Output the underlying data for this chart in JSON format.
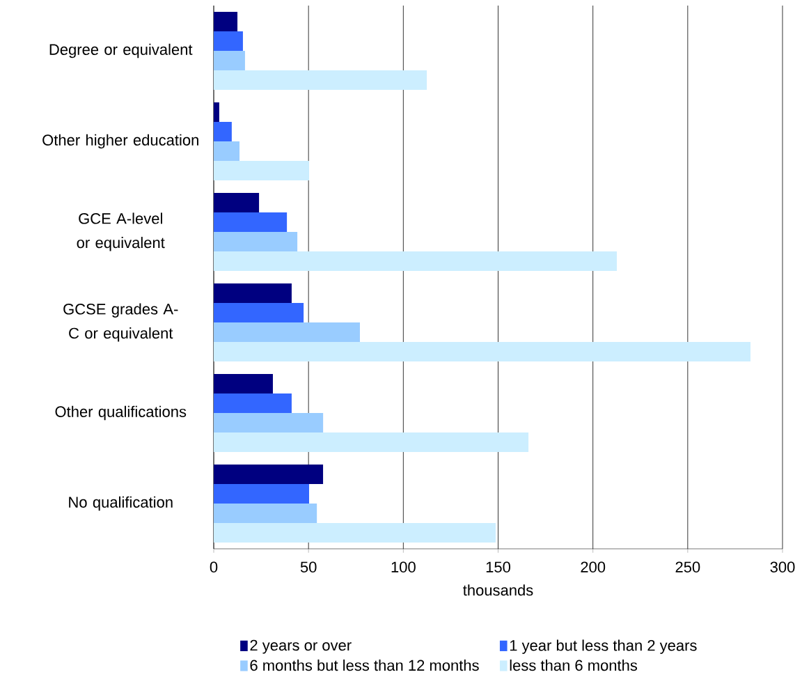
{
  "chart_data": {
    "type": "bar",
    "orientation": "horizontal",
    "categories": [
      "Degree or equivalent",
      "Other higher education",
      "GCE A-level or equivalent",
      "GCSE grades A-C or equivalent",
      "Other qualifications",
      "No qualification"
    ],
    "series": [
      {
        "name": "2 years or over",
        "color": "#000080",
        "values": [
          12.5,
          2.9,
          23.9,
          41.1,
          31.2,
          57.7
        ]
      },
      {
        "name": "1 year but less than 2 years",
        "color": "#3366ff",
        "values": [
          15.4,
          9.5,
          38.6,
          47.4,
          41.1,
          50.3
        ]
      },
      {
        "name": "6 months but less than 12 months",
        "color": "#99ccff",
        "values": [
          16.5,
          13.6,
          44.1,
          77.1,
          57.7,
          54.4
        ]
      },
      {
        "name": "less than 6 months",
        "color": "#cceeff",
        "values": [
          112.4,
          50.3,
          212.6,
          283.1,
          166.0,
          148.7
        ]
      }
    ],
    "xlabel": "thousands",
    "xlim": [
      0,
      300
    ],
    "xticks": [
      0,
      50,
      100,
      150,
      200,
      250,
      300
    ],
    "grid": "x",
    "legend": "bottom"
  }
}
